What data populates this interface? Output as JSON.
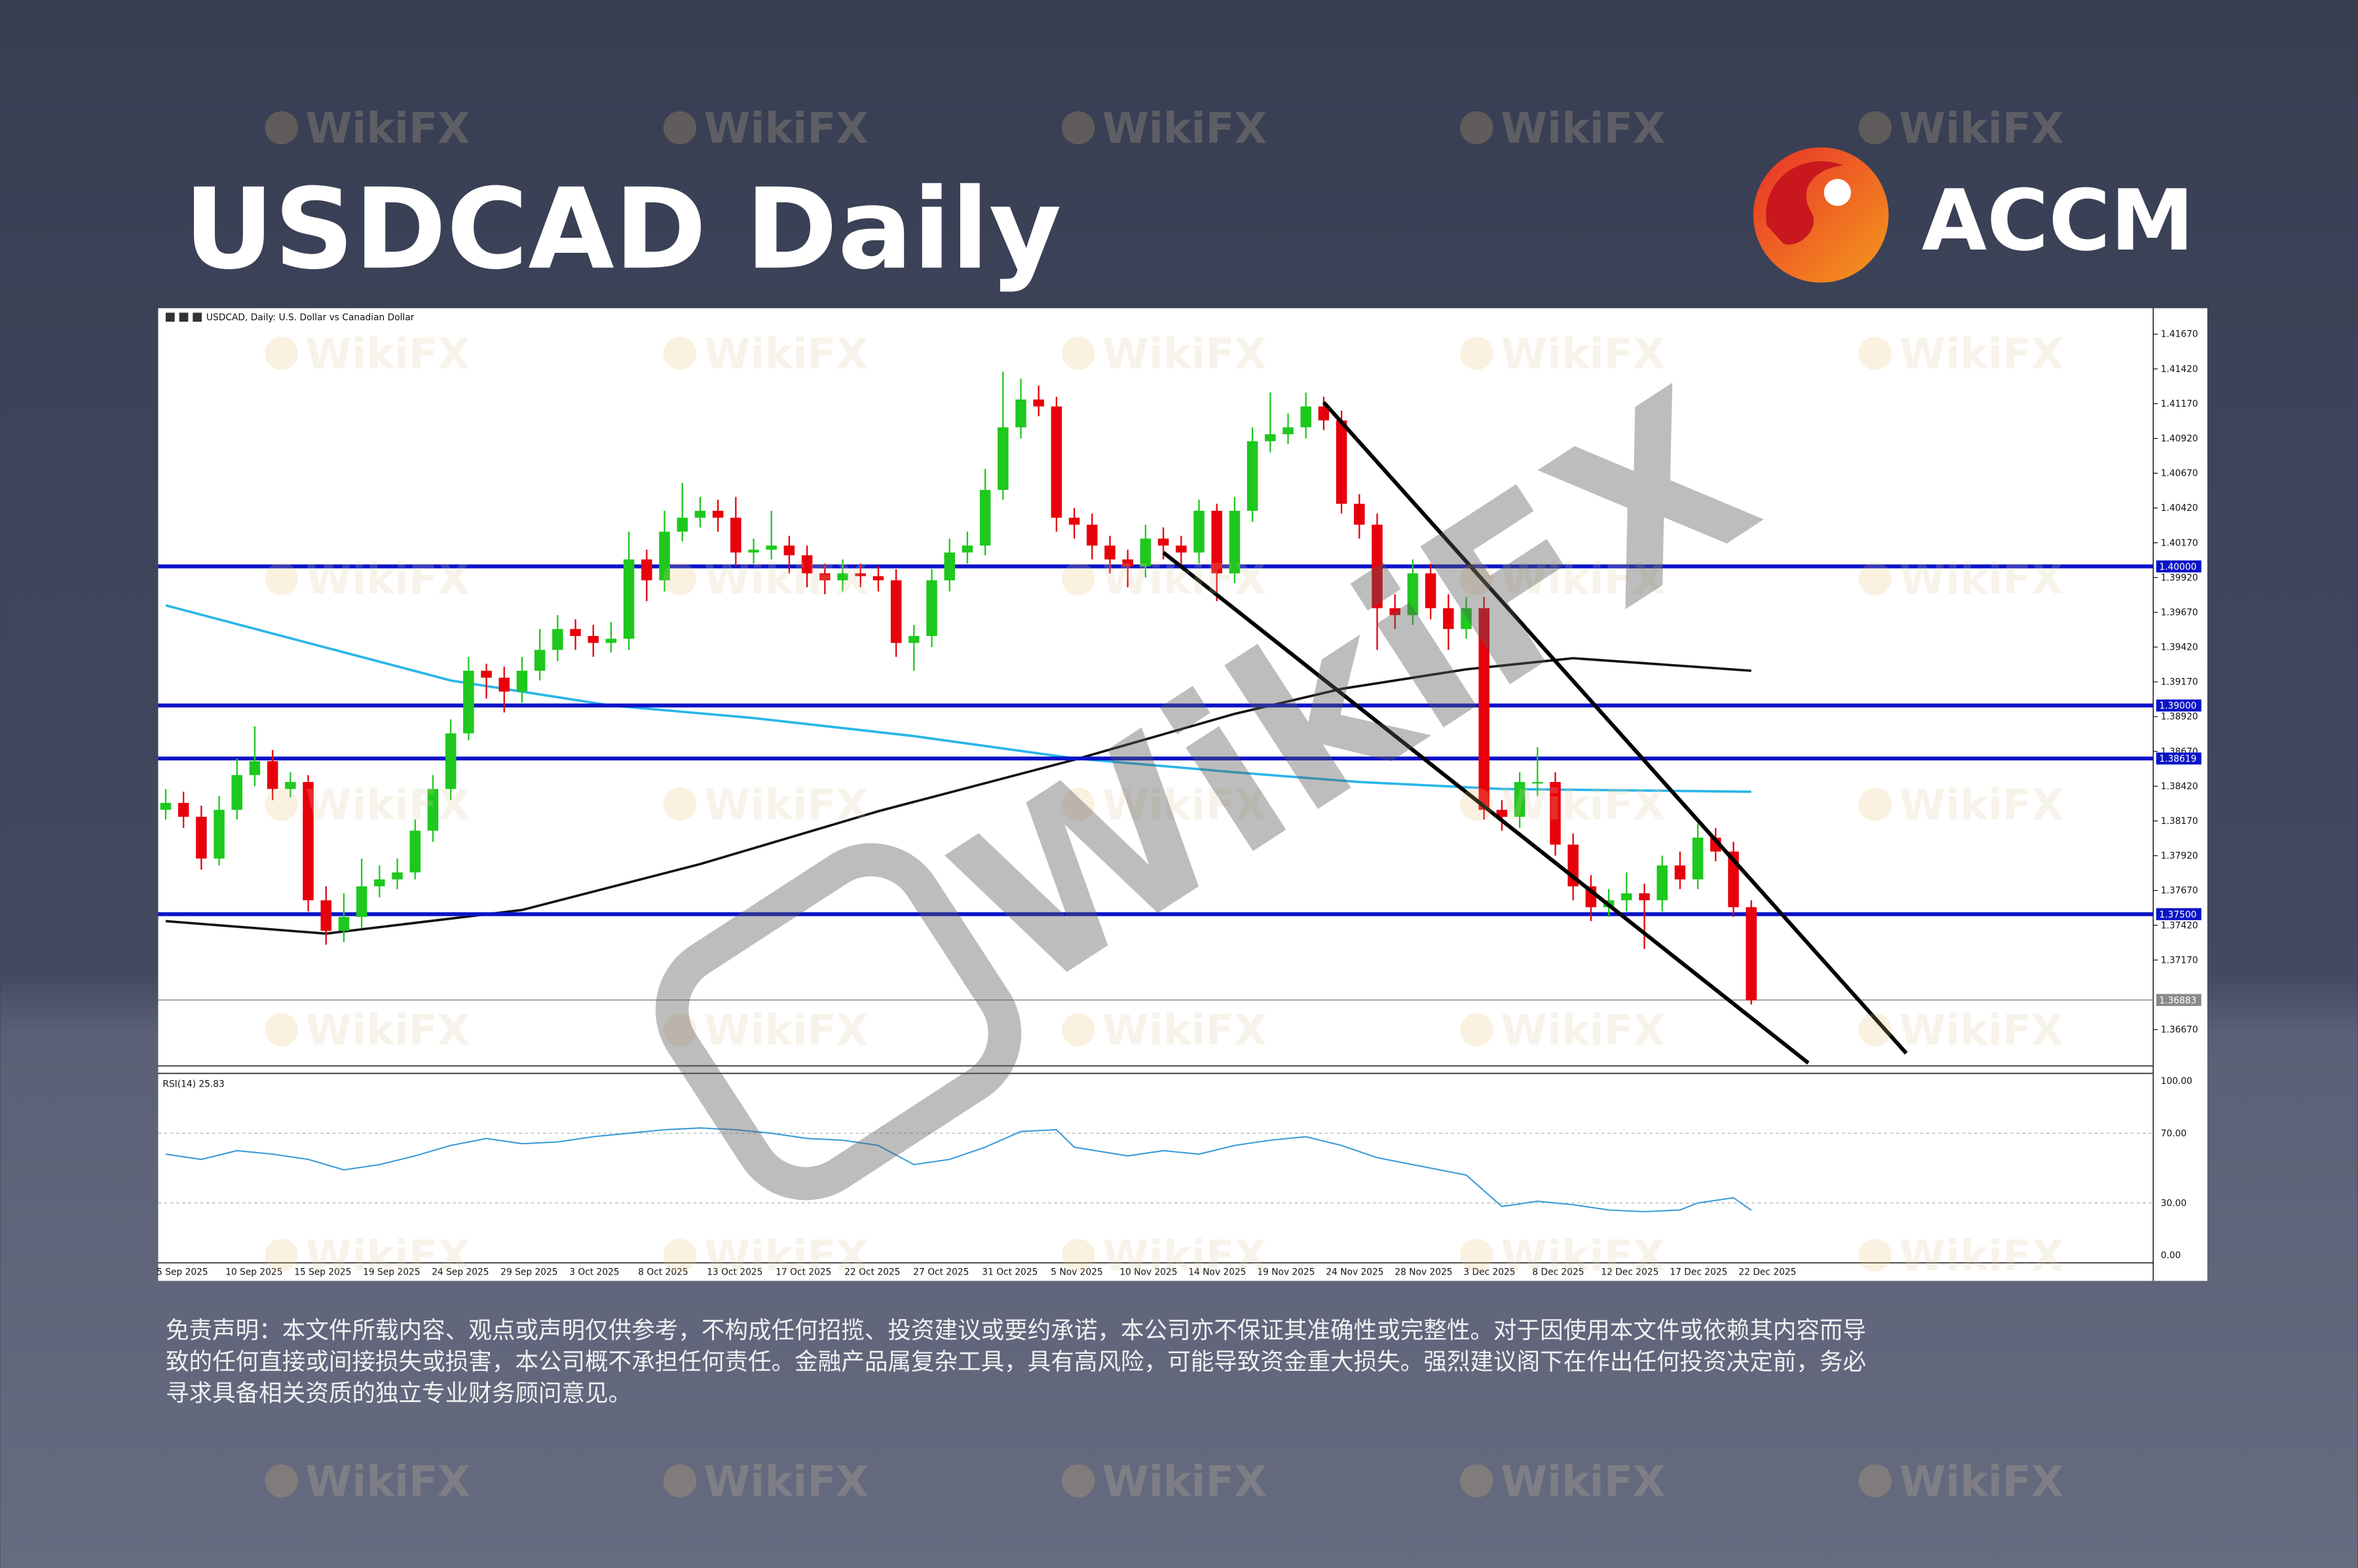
{
  "header": {
    "title": "USDCAD Daily",
    "logo": "ACCM"
  },
  "watermark": "WikiFX",
  "disclaimer": [
    "免责声明：本文件所载内容、观点或声明仅供参考，不构成任何招揽、投资建议或要约承诺，本公司亦不保证其准确性或完整性。对于因使用本文件或依赖其内容而导",
    "致的任何直接或间接损失或损害，本公司概不承担任何责任。金融产品属复杂工具，具有高风险，可能导致资金重大损失。强烈建议阁下在作出任何投资决定前，务必",
    "寻求具备相关资质的独立专业财务顾问意见。"
  ],
  "chart_data": {
    "type": "candlestick",
    "title": "USDCAD, Daily: U.S. Dollar vs Canadian Dollar",
    "up_color": "#1ec81e",
    "down_color": "#e8000b",
    "open": [
      1.3825,
      1.383,
      1.382,
      1.379,
      1.3825,
      1.385,
      1.386,
      1.384,
      1.3845,
      1.376,
      1.3738,
      1.3748,
      1.377,
      1.3775,
      1.378,
      1.381,
      1.384,
      1.388,
      1.3925,
      1.392,
      1.391,
      1.3925,
      1.394,
      1.3955,
      1.395,
      1.3945,
      1.3948,
      1.4005,
      1.399,
      1.4025,
      1.4035,
      1.404,
      1.4035,
      1.401,
      1.4012,
      1.4015,
      1.4008,
      1.3995,
      1.399,
      1.3995,
      1.3993,
      1.399,
      1.3945,
      1.395,
      1.399,
      1.401,
      1.4015,
      1.4055,
      1.41,
      1.412,
      1.4115,
      1.4035,
      1.403,
      1.4015,
      1.4005,
      1.4,
      1.402,
      1.4015,
      1.401,
      1.404,
      1.3995,
      1.404,
      1.409,
      1.4095,
      1.41,
      1.4115,
      1.4105,
      1.4045,
      1.403,
      1.397,
      1.3965,
      1.3995,
      1.397,
      1.3955,
      1.397,
      1.3825,
      1.382,
      1.3845,
      1.3845,
      1.38,
      1.377,
      1.3755,
      1.376,
      1.3765,
      1.376,
      1.3785,
      1.3775,
      1.3805,
      1.3795,
      1.3755
    ],
    "high": [
      1.384,
      1.3838,
      1.3828,
      1.3835,
      1.3862,
      1.3885,
      1.3868,
      1.3852,
      1.385,
      1.377,
      1.3765,
      1.379,
      1.3785,
      1.379,
      1.3818,
      1.385,
      1.389,
      1.3935,
      1.393,
      1.3928,
      1.3935,
      1.3955,
      1.3965,
      1.3962,
      1.3958,
      1.396,
      1.4025,
      1.4012,
      1.404,
      1.406,
      1.405,
      1.4048,
      1.405,
      1.402,
      1.404,
      1.4022,
      1.4015,
      1.4002,
      1.4005,
      1.4002,
      1.4,
      1.3998,
      1.3958,
      1.3998,
      1.402,
      1.4025,
      1.407,
      1.414,
      1.4135,
      1.413,
      1.4122,
      1.4042,
      1.4038,
      1.4022,
      1.4012,
      1.403,
      1.4028,
      1.4022,
      1.4048,
      1.4045,
      1.405,
      1.41,
      1.4125,
      1.411,
      1.4125,
      1.4122,
      1.4112,
      1.4052,
      1.4038,
      1.398,
      1.4005,
      1.4002,
      1.398,
      1.3978,
      1.3978,
      1.3832,
      1.3852,
      1.387,
      1.3852,
      1.3808,
      1.3778,
      1.3768,
      1.378,
      1.3772,
      1.3792,
      1.3795,
      1.3815,
      1.3812,
      1.3802,
      1.376
    ],
    "low": [
      1.3818,
      1.3812,
      1.3782,
      1.3785,
      1.3818,
      1.3842,
      1.3832,
      1.3834,
      1.3752,
      1.3728,
      1.373,
      1.374,
      1.3762,
      1.3768,
      1.3775,
      1.3802,
      1.3832,
      1.3875,
      1.3905,
      1.3895,
      1.3902,
      1.3918,
      1.3932,
      1.394,
      1.3935,
      1.3938,
      1.394,
      1.3975,
      1.3982,
      1.4018,
      1.4028,
      1.4025,
      1.4,
      1.4002,
      1.4005,
      1.3995,
      1.3985,
      1.398,
      1.3982,
      1.3985,
      1.3982,
      1.3935,
      1.3925,
      1.3942,
      1.3982,
      1.4002,
      1.4008,
      1.4048,
      1.4092,
      1.4108,
      1.4025,
      1.402,
      1.4005,
      1.3995,
      1.3985,
      1.3992,
      1.4005,
      1.4,
      1.4002,
      1.3975,
      1.3988,
      1.4032,
      1.4082,
      1.4088,
      1.4092,
      1.4098,
      1.4038,
      1.402,
      1.394,
      1.3955,
      1.3958,
      1.3962,
      1.394,
      1.3948,
      1.3818,
      1.381,
      1.3812,
      1.3835,
      1.3792,
      1.376,
      1.3745,
      1.3748,
      1.3752,
      1.3725,
      1.3752,
      1.3768,
      1.3768,
      1.3788,
      1.3748,
      1.3685
    ],
    "close": [
      1.383,
      1.382,
      1.379,
      1.3825,
      1.385,
      1.386,
      1.384,
      1.3845,
      1.376,
      1.3738,
      1.3748,
      1.377,
      1.3775,
      1.378,
      1.381,
      1.384,
      1.388,
      1.3925,
      1.392,
      1.391,
      1.3925,
      1.394,
      1.3955,
      1.395,
      1.3945,
      1.3948,
      1.4005,
      1.399,
      1.4025,
      1.4035,
      1.404,
      1.4035,
      1.401,
      1.4012,
      1.4015,
      1.4008,
      1.3995,
      1.399,
      1.3995,
      1.3993,
      1.399,
      1.3945,
      1.395,
      1.399,
      1.401,
      1.4015,
      1.4055,
      1.41,
      1.412,
      1.4115,
      1.4035,
      1.403,
      1.4015,
      1.4005,
      1.4,
      1.402,
      1.4015,
      1.401,
      1.404,
      1.3995,
      1.404,
      1.409,
      1.4095,
      1.41,
      1.4115,
      1.4105,
      1.4045,
      1.403,
      1.397,
      1.3965,
      1.3995,
      1.397,
      1.3955,
      1.397,
      1.3825,
      1.382,
      1.3845,
      1.3845,
      1.38,
      1.377,
      1.3755,
      1.376,
      1.3765,
      1.376,
      1.3785,
      1.3775,
      1.3805,
      1.3795,
      1.3755,
      1.3688
    ],
    "ylim": [
      1.3642,
      1.4177
    ],
    "yticks": [
      {
        "value": 1.4167,
        "label": "1.41670"
      },
      {
        "value": 1.4142,
        "label": "1.41420"
      },
      {
        "value": 1.4117,
        "label": "1.41170"
      },
      {
        "value": 1.4092,
        "label": "1.40920"
      },
      {
        "value": 1.4067,
        "label": "1.40670"
      },
      {
        "value": 1.4042,
        "label": "1.40420"
      },
      {
        "value": 1.4017,
        "label": "1.40170"
      },
      {
        "value": 1.3992,
        "label": "1.39920"
      },
      {
        "value": 1.3967,
        "label": "1.39670"
      },
      {
        "value": 1.3942,
        "label": "1.39420"
      },
      {
        "value": 1.3917,
        "label": "1.39170"
      },
      {
        "value": 1.3892,
        "label": "1.38920"
      },
      {
        "value": 1.3867,
        "label": "1.38670"
      },
      {
        "value": 1.3842,
        "label": "1.38420"
      },
      {
        "value": 1.3817,
        "label": "1.38170"
      },
      {
        "value": 1.3792,
        "label": "1.37920"
      },
      {
        "value": 1.3767,
        "label": "1.37670"
      },
      {
        "value": 1.3742,
        "label": "1.37420"
      },
      {
        "value": 1.3717,
        "label": "1.37170"
      },
      {
        "value": 1.3667,
        "label": "1.36670"
      }
    ],
    "levels": [
      {
        "value": 1.4,
        "label": "1.40000",
        "color": "#0a14c8"
      },
      {
        "value": 1.39,
        "label": "1.39000",
        "color": "#0a14c8"
      },
      {
        "value": 1.38619,
        "label": "1.38619",
        "color": "#0a14c8"
      },
      {
        "value": 1.375,
        "label": "1.37500",
        "color": "#0a14c8"
      }
    ],
    "current_price": {
      "value": 1.36883,
      "label": "1.36883",
      "color": "#8a8a8a"
    },
    "moving_averages": [
      {
        "color": "#29b6e8",
        "x": [
          0,
          8,
          16,
          25,
          33,
          42,
          51,
          60,
          67,
          75,
          89
        ],
        "values": [
          1.3972,
          1.3945,
          1.3918,
          1.39,
          1.3891,
          1.3878,
          1.3862,
          1.3852,
          1.3845,
          1.384,
          1.3838
        ]
      },
      {
        "color": "#111111",
        "x": [
          0,
          9,
          20,
          30,
          40,
          51,
          60,
          66,
          73,
          79,
          89
        ],
        "values": [
          1.3745,
          1.3736,
          1.3753,
          1.3786,
          1.3824,
          1.3861,
          1.3894,
          1.3912,
          1.3926,
          1.3934,
          1.3925
        ]
      }
    ],
    "trend_lines": [
      {
        "color": "#000000",
        "x": [
          65,
          97.7
        ],
        "values": [
          1.4118,
          1.365
        ]
      },
      {
        "color": "#000000",
        "x": [
          56,
          92.2
        ],
        "values": [
          1.401,
          1.3643
        ]
      }
    ],
    "date_labels": [
      "5 Sep 2025",
      "10 Sep 2025",
      "15 Sep 2025",
      "19 Sep 2025",
      "24 Sep 2025",
      "29 Sep 2025",
      "3 Oct 2025",
      "8 Oct 2025",
      "13 Oct 2025",
      "17 Oct 2025",
      "22 Oct 2025",
      "27 Oct 2025",
      "31 Oct 2025",
      "5 Nov 2025",
      "10 Nov 2025",
      "14 Nov 2025",
      "19 Nov 2025",
      "24 Nov 2025",
      "28 Nov 2025",
      "3 Dec 2025",
      "8 Dec 2025",
      "12 Dec 2025",
      "17 Dec 2025",
      "22 Dec 2025"
    ],
    "rsi": {
      "label": "RSI(14) 25.83",
      "color": "#3a9ad9",
      "x": [
        0,
        2,
        4,
        6,
        8,
        10,
        12,
        14,
        16,
        18,
        20,
        22,
        24,
        26,
        28,
        30,
        32,
        34,
        36,
        38,
        40,
        42,
        44,
        46,
        48,
        50,
        51,
        54,
        56,
        58,
        60,
        62,
        64,
        66,
        68,
        70,
        72,
        73,
        75,
        77,
        79,
        81,
        83,
        85,
        86,
        88,
        89
      ],
      "values": [
        58,
        55,
        60,
        58,
        55,
        49,
        52,
        57,
        63,
        67,
        64,
        65,
        68,
        70,
        72,
        73,
        72,
        70,
        67,
        66,
        63,
        52,
        55,
        62,
        71,
        72,
        62,
        57,
        60,
        58,
        63,
        66,
        68,
        63,
        56,
        52,
        48,
        46,
        28,
        31,
        29,
        26,
        25,
        26,
        30,
        33,
        25.83
      ],
      "ylim": [
        0,
        100
      ],
      "yticks": [
        {
          "value": 100,
          "label": "100.00"
        },
        {
          "value": 70,
          "label": "70.00"
        },
        {
          "value": 30,
          "label": "30.00"
        },
        {
          "value": 0,
          "label": "0.00"
        }
      ]
    }
  }
}
